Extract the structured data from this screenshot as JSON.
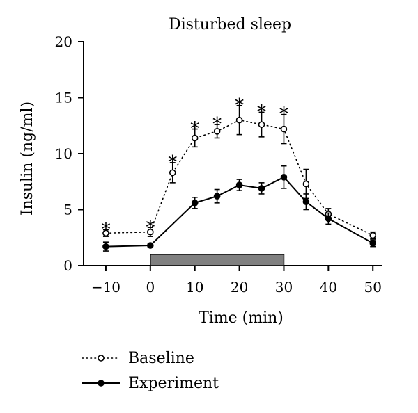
{
  "chart_data": {
    "type": "line",
    "title": "Disturbed sleep",
    "xlabel": "Time (min)",
    "ylabel": "Insulin (ng/ml)",
    "xlim": [
      -15,
      52
    ],
    "ylim": [
      0,
      20
    ],
    "xticks": [
      -10,
      0,
      10,
      20,
      30,
      40,
      50
    ],
    "xtick_labels": [
      "−10",
      "0",
      "10",
      "20",
      "30",
      "40",
      "50"
    ],
    "yticks": [
      0,
      5,
      10,
      15,
      20
    ],
    "ytick_labels": [
      "0",
      "5",
      "10",
      "15",
      "20"
    ],
    "grid": false,
    "legend_position": "bottom-left",
    "intervention_bar": {
      "x_start": 0,
      "x_end": 30,
      "y_start": 0,
      "y_end": 1.0,
      "color": "#808080"
    },
    "significance_marker": "*",
    "significant_x": [
      -10,
      0,
      5,
      10,
      15,
      20,
      25,
      30
    ],
    "series": [
      {
        "name": "Baseline",
        "style": "dotted",
        "marker": "open-circle",
        "x": [
          -10,
          0,
          5,
          10,
          15,
          20,
          25,
          30,
          35,
          40,
          50
        ],
        "y": [
          2.9,
          3.0,
          8.3,
          11.4,
          12.0,
          13.0,
          12.6,
          12.2,
          7.3,
          4.6,
          2.7
        ],
        "err": [
          0.3,
          0.4,
          0.9,
          0.8,
          0.6,
          1.3,
          1.1,
          1.3,
          1.3,
          0.5,
          0.3
        ]
      },
      {
        "name": "Experiment",
        "style": "solid",
        "marker": "filled-circle",
        "x": [
          -10,
          0,
          10,
          15,
          20,
          25,
          30,
          35,
          40,
          50
        ],
        "y": [
          1.7,
          1.8,
          5.6,
          6.2,
          7.2,
          6.9,
          7.9,
          5.7,
          4.2,
          2.0
        ],
        "err": [
          0.4,
          0.2,
          0.5,
          0.6,
          0.5,
          0.5,
          1.0,
          0.7,
          0.5,
          0.3
        ]
      }
    ]
  }
}
